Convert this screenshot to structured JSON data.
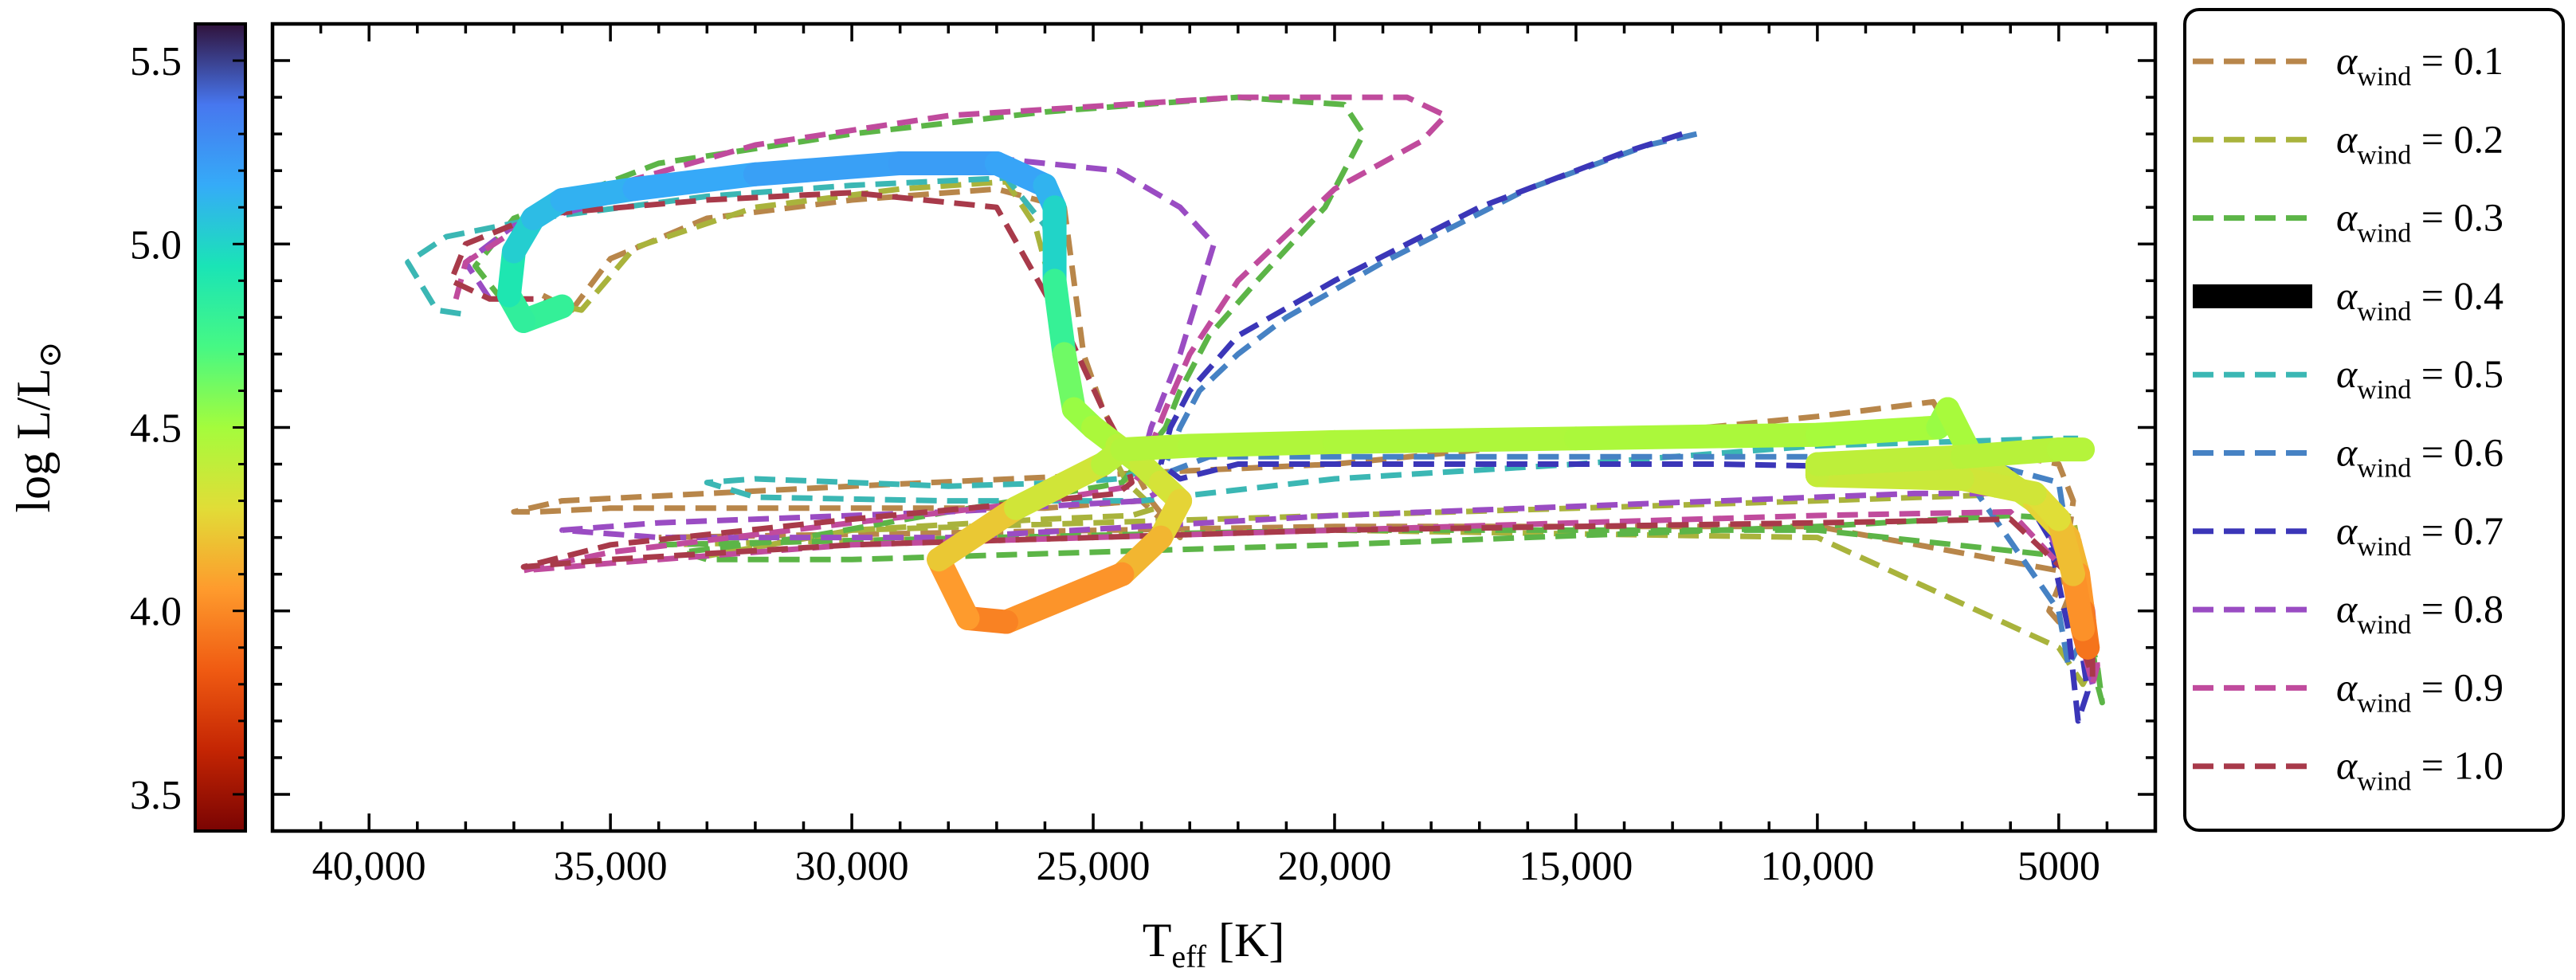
{
  "chart_data": {
    "type": "line",
    "title": "",
    "xlabel": "T",
    "xlabel_sub": "eff",
    "xlabel_unit": " [K]",
    "ylabel": "log L/L",
    "ylabel_symbol": "⊙",
    "x_reversed": true,
    "xlim": [
      42000,
      3000
    ],
    "ylim": [
      3.4,
      5.6
    ],
    "x_ticks": [
      40000,
      35000,
      30000,
      25000,
      20000,
      15000,
      10000,
      5000
    ],
    "x_tick_labels": [
      "40,000",
      "35,000",
      "30,000",
      "25,000",
      "20,000",
      "15,000",
      "10,000",
      "5000"
    ],
    "y_ticks": [
      3.5,
      4.0,
      4.5,
      5.0,
      5.5
    ],
    "y_tick_labels": [
      "3.5",
      "4.0",
      "4.5",
      "5.0",
      "5.5"
    ],
    "grid": false,
    "legend_position": "outside-right",
    "colorbar": {
      "position": "left",
      "colormap": "turbo",
      "range": [
        3.4,
        5.6
      ],
      "stops": [
        "#7a0403",
        "#c42503",
        "#f05b12",
        "#fe9b2d",
        "#e1dd37",
        "#a4fc3c",
        "#46f884",
        "#1ae4b6",
        "#35abf8",
        "#4777ef",
        "#30123b"
      ]
    },
    "series": [
      {
        "name": "0.1",
        "color": "#b8864a",
        "style": "dashed",
        "x": [
          36400,
          35800,
          35000,
          33000,
          30000,
          27000,
          25600,
          25200,
          24800,
          24400,
          23800,
          23200,
          24000,
          26000,
          30000,
          35000,
          36500,
          37000,
          36000,
          30000,
          20000,
          10000,
          7600,
          7300,
          7000,
          5000,
          4700,
          4900,
          5200,
          5000,
          4600,
          10000,
          20000,
          34000
        ],
        "y": [
          4.86,
          4.82,
          4.96,
          5.07,
          5.12,
          5.15,
          5.1,
          4.7,
          4.55,
          4.45,
          4.3,
          4.2,
          4.3,
          4.28,
          4.28,
          4.28,
          4.27,
          4.27,
          4.3,
          4.34,
          4.4,
          4.53,
          4.57,
          4.5,
          4.45,
          4.4,
          4.3,
          4.1,
          4.0,
          3.97,
          4.1,
          4.23,
          4.23,
          4.2
        ]
      },
      {
        "name": "0.2",
        "color": "#a9b33c",
        "style": "dashed",
        "x": [
          36400,
          35600,
          34500,
          32000,
          29000,
          26800,
          26200,
          25600,
          25200,
          24700,
          24300,
          23900,
          23700,
          24200,
          26000,
          30000,
          33000,
          30000,
          20000,
          10000,
          5500,
          4700,
          4400,
          4300,
          4500,
          5000,
          10000,
          20000,
          34000
        ],
        "y": [
          4.84,
          4.82,
          4.99,
          5.1,
          5.15,
          5.17,
          5.05,
          4.75,
          4.55,
          4.45,
          4.35,
          4.3,
          4.28,
          4.26,
          4.25,
          4.22,
          4.15,
          4.22,
          4.26,
          4.3,
          4.32,
          4.25,
          4.05,
          3.85,
          3.8,
          3.9,
          4.2,
          4.22,
          4.18
        ]
      },
      {
        "name": "0.3",
        "color": "#5cb547",
        "style": "dashed",
        "x": [
          37200,
          37800,
          37000,
          34000,
          30000,
          26000,
          22000,
          19800,
          19400,
          20200,
          21600,
          22600,
          23200,
          23500,
          23800,
          24100,
          24400,
          24800,
          28000,
          31000,
          33500,
          33000,
          30000,
          20000,
          10000,
          6000,
          4800,
          4400,
          4200,
          4100,
          4200,
          4500,
          5000,
          10000,
          20000,
          34000
        ],
        "y": [
          4.84,
          4.94,
          5.07,
          5.22,
          5.3,
          5.36,
          5.4,
          5.38,
          5.3,
          5.1,
          4.9,
          4.75,
          4.6,
          4.5,
          4.45,
          4.4,
          4.35,
          4.34,
          4.27,
          4.2,
          4.16,
          4.14,
          4.14,
          4.18,
          4.23,
          4.26,
          4.25,
          4.0,
          3.8,
          3.75,
          3.85,
          4.0,
          4.15,
          4.22,
          4.22,
          4.18
        ]
      },
      {
        "name": "0.4",
        "color": "#000000",
        "style": "thick-gradient",
        "x": [
          36000,
          36800,
          37100,
          37000,
          36600,
          36000,
          34500,
          32000,
          29000,
          27000,
          26000,
          25800,
          25800,
          25600,
          25400,
          25000,
          24500,
          24000,
          23600,
          23200,
          23600,
          24400,
          26800,
          27600,
          28200,
          26600,
          24800,
          24400,
          23000,
          20000,
          15000,
          10000,
          7500,
          7300,
          6800,
          5500,
          4800,
          4600,
          4500,
          4400,
          4500,
          4700,
          5000,
          5500,
          7000,
          10000,
          10000,
          7000,
          5000,
          4500
        ],
        "y": [
          4.83,
          4.79,
          4.86,
          4.98,
          5.07,
          5.12,
          5.15,
          5.19,
          5.22,
          5.22,
          5.16,
          5.1,
          4.9,
          4.7,
          4.55,
          4.5,
          4.45,
          4.4,
          4.35,
          4.3,
          4.2,
          4.1,
          3.97,
          3.98,
          4.14,
          4.28,
          4.4,
          4.44,
          4.45,
          4.46,
          4.47,
          4.48,
          4.5,
          4.55,
          4.42,
          4.3,
          4.2,
          4.1,
          4.0,
          3.9,
          3.95,
          4.1,
          4.25,
          4.32,
          4.36,
          4.37,
          4.4,
          4.42,
          4.44,
          4.44
        ]
      },
      {
        "name": "0.5",
        "color": "#3bb7b4",
        "style": "dashed",
        "x": [
          38100,
          38600,
          39200,
          38400,
          36500,
          33000,
          30000,
          26800,
          26000,
          25800,
          25500,
          25000,
          24500,
          24000,
          24000,
          24500,
          25500,
          28000,
          32000,
          33000,
          32000,
          28000,
          24000,
          20000,
          15000,
          10000,
          7500,
          5000,
          4600
        ],
        "y": [
          4.81,
          4.82,
          4.95,
          5.02,
          5.07,
          5.13,
          5.16,
          5.18,
          5.05,
          4.8,
          4.6,
          4.5,
          4.45,
          4.4,
          4.38,
          4.36,
          4.35,
          4.34,
          4.36,
          4.35,
          4.31,
          4.3,
          4.3,
          4.36,
          4.4,
          4.45,
          4.46,
          4.47,
          4.47
        ]
      },
      {
        "name": "0.6",
        "color": "#4682c4",
        "style": "dashed",
        "x": [
          12500,
          13500,
          16000,
          19000,
          21000,
          22000,
          22800,
          23200,
          23500,
          23400,
          22600,
          20000,
          15000,
          10000,
          7000,
          5000,
          4700,
          4600,
          4800,
          5000,
          7000,
          10000
        ],
        "y": [
          5.3,
          5.27,
          5.15,
          4.95,
          4.8,
          4.7,
          4.6,
          4.5,
          4.4,
          4.38,
          4.42,
          4.42,
          4.42,
          4.42,
          4.42,
          4.35,
          4.1,
          3.9,
          3.85,
          4.0,
          4.38,
          4.4
        ]
      },
      {
        "name": "0.7",
        "color": "#3b36b8",
        "style": "dashed",
        "x": [
          12800,
          14000,
          17000,
          20000,
          22000,
          23000,
          23400,
          23600,
          23200,
          22000,
          18000,
          12000,
          8000,
          6000,
          5200,
          4800,
          4600,
          4400,
          4700,
          5500,
          8000,
          10000
        ],
        "y": [
          5.3,
          5.25,
          5.1,
          4.9,
          4.75,
          4.6,
          4.5,
          4.4,
          4.36,
          4.4,
          4.4,
          4.4,
          4.39,
          4.38,
          4.2,
          3.95,
          3.7,
          3.78,
          4.05,
          4.3,
          4.37,
          4.37
        ]
      },
      {
        "name": "0.8",
        "color": "#9a4cc3",
        "style": "dashed",
        "x": [
          37500,
          38000,
          37000,
          34000,
          30000,
          27500,
          24500,
          23200,
          22500,
          23200,
          23800,
          24000,
          23700,
          24000,
          28000,
          34000,
          36000,
          34000,
          28000,
          20000,
          12000,
          8000,
          5500,
          4800,
          4600,
          4400,
          4300,
          4400,
          4800,
          5500,
          8000,
          10000
        ],
        "y": [
          4.85,
          4.95,
          5.05,
          5.15,
          5.2,
          5.24,
          5.2,
          5.1,
          5.0,
          4.7,
          4.5,
          4.4,
          4.32,
          4.3,
          4.27,
          4.24,
          4.22,
          4.2,
          4.2,
          4.26,
          4.3,
          4.32,
          4.32,
          4.2,
          4.0,
          3.85,
          3.8,
          3.9,
          4.1,
          4.3,
          4.36,
          4.38
        ]
      },
      {
        "name": "0.9",
        "color": "#c04b9d",
        "style": "dashed",
        "x": [
          38200,
          38000,
          36000,
          32000,
          28000,
          22000,
          18500,
          17700,
          18200,
          20000,
          22000,
          23000,
          23500,
          23800,
          24000,
          24200,
          26000,
          30000,
          35000,
          36800,
          35000,
          30000,
          20000,
          10000,
          6000,
          4800,
          4500,
          4300,
          4200,
          4300,
          4600,
          5500,
          8000,
          10000
        ],
        "y": [
          4.85,
          4.95,
          5.12,
          5.27,
          5.35,
          5.4,
          5.4,
          5.35,
          5.28,
          5.15,
          4.9,
          4.7,
          4.55,
          4.45,
          4.38,
          4.34,
          4.3,
          4.24,
          4.16,
          4.11,
          4.13,
          4.18,
          4.22,
          4.26,
          4.27,
          4.1,
          3.9,
          3.8,
          3.85,
          4.0,
          4.2,
          4.34,
          4.38,
          4.38
        ]
      },
      {
        "name": "1.0",
        "color": "#a83a4a",
        "style": "dashed",
        "x": [
          36000,
          36500,
          37500,
          38300,
          38000,
          36500,
          33000,
          30000,
          27000,
          25500,
          24800,
          24400,
          24200,
          24500,
          26000,
          30000,
          35000,
          36800,
          35000,
          30000,
          20000,
          10000,
          6000,
          4800,
          4500,
          4300,
          4300,
          4500,
          5500,
          8000,
          10000
        ],
        "y": [
          4.82,
          4.85,
          4.85,
          4.9,
          5.0,
          5.08,
          5.12,
          5.14,
          5.1,
          4.75,
          4.55,
          4.45,
          4.35,
          4.32,
          4.3,
          4.25,
          4.18,
          4.12,
          4.14,
          4.18,
          4.22,
          4.24,
          4.25,
          4.1,
          3.9,
          3.82,
          3.95,
          4.15,
          4.32,
          4.35,
          4.36
        ]
      }
    ],
    "legend": {
      "symbol": "α",
      "sub": "wind",
      "prefix": " = ",
      "entries": [
        "0.1",
        "0.2",
        "0.3",
        "0.4",
        "0.5",
        "0.6",
        "0.7",
        "0.8",
        "0.9",
        "1.0"
      ]
    }
  }
}
